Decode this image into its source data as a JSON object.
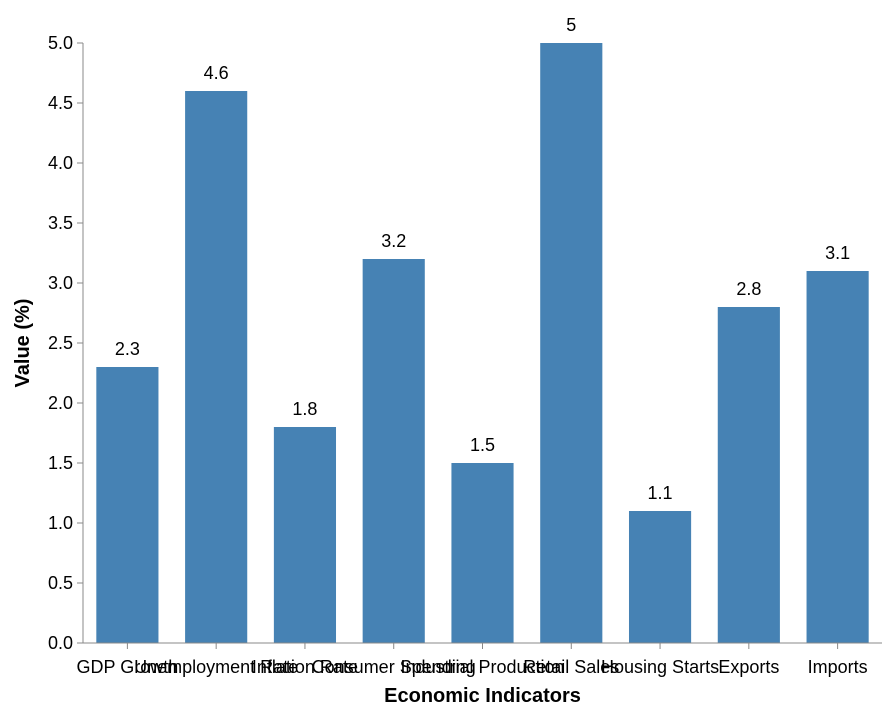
{
  "chart_data": {
    "type": "bar",
    "categories": [
      "GDP Growth",
      "Unemployment Rate",
      "Inflation Rate",
      "Consumer Spending",
      "Industrial Production",
      "Retail Sales",
      "Housing Starts",
      "Exports",
      "Imports"
    ],
    "values": [
      2.3,
      4.6,
      1.8,
      3.2,
      1.5,
      5,
      1.1,
      2.8,
      3.1
    ],
    "data_labels": [
      "2.3",
      "4.6",
      "1.8",
      "3.2",
      "1.5",
      "5",
      "1.1",
      "2.8",
      "3.1"
    ],
    "xlabel": "Economic Indicators",
    "ylabel": "Value (%)",
    "ylim": [
      0,
      5
    ],
    "yticks": [
      "0.0",
      "0.5",
      "1.0",
      "1.5",
      "2.0",
      "2.5",
      "3.0",
      "3.5",
      "4.0",
      "4.5",
      "5.0"
    ],
    "grid": false,
    "bar_color": "#4682b4"
  }
}
